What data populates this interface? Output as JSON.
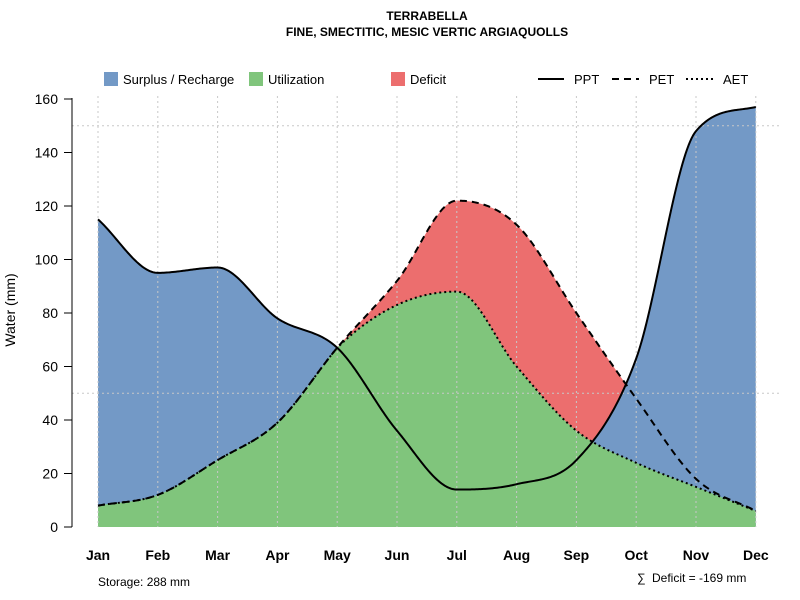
{
  "chart_data": {
    "type": "area",
    "title": "TERRABELLA",
    "subtitle": "FINE, SMECTITIC, MESIC VERTIC ARGIAQUOLLS",
    "ylabel": "Water (mm)",
    "xlabel": "",
    "ylim": [
      0,
      160
    ],
    "yticks": [
      "0",
      "20",
      "40",
      "60",
      "80",
      "100",
      "120",
      "140",
      "160"
    ],
    "categories": [
      "Jan",
      "Feb",
      "Mar",
      "Apr",
      "May",
      "Jun",
      "Jul",
      "Aug",
      "Sep",
      "Oct",
      "Nov",
      "Dec"
    ],
    "grid": true,
    "series": [
      {
        "name": "PPT",
        "style": "solid",
        "values": [
          115,
          95,
          97,
          78,
          67,
          36,
          14,
          16,
          25,
          63,
          148,
          157
        ]
      },
      {
        "name": "PET",
        "style": "dashed",
        "values": [
          8,
          12,
          25,
          39,
          67,
          92,
          122,
          113,
          80,
          48,
          18,
          6
        ]
      },
      {
        "name": "AET",
        "style": "dotted",
        "values": [
          8,
          12,
          25,
          39,
          67,
          83,
          88,
          60,
          36,
          24,
          15,
          6
        ]
      }
    ],
    "legend": [
      {
        "label": "Surplus / Recharge",
        "color": "#7399C6"
      },
      {
        "label": "Utilization",
        "color": "#80C57C"
      },
      {
        "label": "Deficit",
        "color": "#EC6E6E"
      },
      {
        "label": "PPT",
        "line": "solid"
      },
      {
        "label": "PET",
        "line": "dashed"
      },
      {
        "label": "AET",
        "line": "dotted"
      }
    ],
    "annotations": {
      "storage": "Storage: 288 mm",
      "deficit_symbol": "∑",
      "deficit": "Deficit = -169 mm"
    },
    "colors": {
      "surplus": "#7399C6",
      "utilization": "#80C57C",
      "deficit": "#EC6E6E"
    }
  }
}
